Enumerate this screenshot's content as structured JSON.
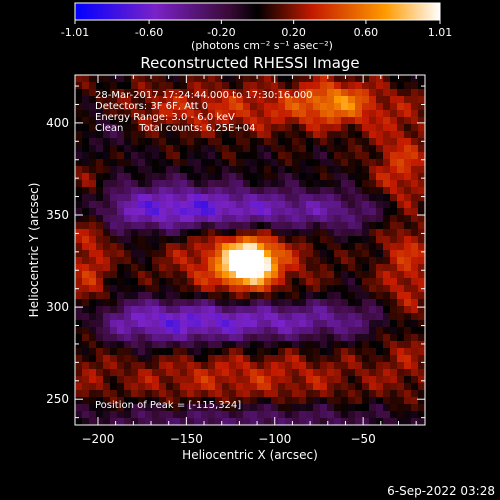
{
  "colorbar": {
    "tick_labels": [
      "-1.01",
      "-0.60",
      "-0.20",
      "0.20",
      "0.60",
      "1.01"
    ],
    "ticks": [
      -1.01,
      -0.6,
      -0.2,
      0.2,
      0.6,
      1.01
    ],
    "range": [
      -1.01,
      1.01
    ],
    "units": "(photons cm⁻² s⁻¹ asec⁻²)",
    "colors": [
      "#0000ff",
      "#7a22c8",
      "#3a0a38",
      "#000000",
      "#c41a00",
      "#ff9a00",
      "#ffffff"
    ]
  },
  "chart_data": {
    "type": "heatmap",
    "title": "Reconstructed RHESSI Image",
    "xlabel": "Heliocentric X (arcsec)",
    "ylabel": "Heliocentric Y (arcsec)",
    "xlim": [
      -213,
      -15
    ],
    "ylim": [
      236,
      426
    ],
    "x_ticks": [
      -200,
      -150,
      -100,
      -50
    ],
    "x_tick_labels": [
      "−200",
      "−150",
      "−100",
      "−50"
    ],
    "y_ticks": [
      250,
      300,
      350,
      400
    ],
    "y_tick_labels": [
      "250",
      "300",
      "350",
      "400"
    ],
    "grid": false,
    "annotations": [
      "28-Mar-2017 17:24:44.000 to 17:30:16.000",
      "Detectors: 3F 6F, Att 0",
      "Energy Range: 3.0 - 6.0 keV",
      "Clean     Total counts: 6.25E+04",
      "Position of Peak = [-115,324]"
    ],
    "peak": {
      "x": -115,
      "y": 324,
      "value": 1.01
    },
    "features": [
      {
        "x": -115,
        "y": 324,
        "sx": 9,
        "sy": 7,
        "amp": 1.25
      },
      {
        "x": -120,
        "y": 326,
        "sx": 28,
        "sy": 18,
        "amp": 0.45
      },
      {
        "x": -115,
        "y": 352,
        "sx": 60,
        "sy": 8,
        "amp": -0.55
      },
      {
        "x": -160,
        "y": 356,
        "sx": 35,
        "sy": 10,
        "amp": -0.3
      },
      {
        "x": -115,
        "y": 293,
        "sx": 60,
        "sy": 8,
        "amp": -0.55
      },
      {
        "x": -165,
        "y": 290,
        "sx": 35,
        "sy": 10,
        "amp": -0.25
      },
      {
        "x": -120,
        "y": 408,
        "sx": 70,
        "sy": 10,
        "amp": 0.32
      },
      {
        "x": -65,
        "y": 412,
        "sx": 15,
        "sy": 8,
        "amp": 0.42
      },
      {
        "x": -205,
        "y": 330,
        "sx": 9,
        "sy": 40,
        "amp": 0.32
      },
      {
        "x": -25,
        "y": 320,
        "sx": 12,
        "sy": 40,
        "amp": 0.32
      },
      {
        "x": -120,
        "y": 262,
        "sx": 60,
        "sy": 12,
        "amp": 0.3
      },
      {
        "x": -120,
        "y": 240,
        "sx": 70,
        "sy": 6,
        "amp": -0.3
      },
      {
        "x": -30,
        "y": 378,
        "sx": 12,
        "sy": 16,
        "amp": 0.25
      },
      {
        "x": -200,
        "y": 398,
        "sx": 12,
        "sy": 12,
        "amp": -0.25
      }
    ]
  },
  "footer": {
    "timestamp": "6-Sep-2022 03:28"
  }
}
